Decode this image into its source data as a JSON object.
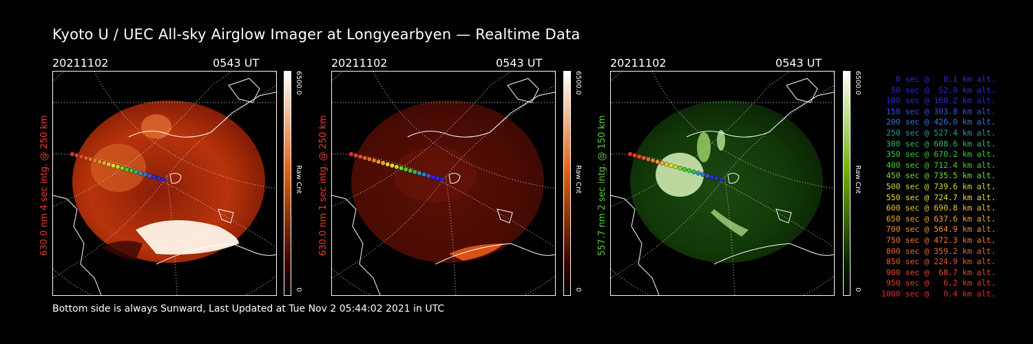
{
  "title": "Kyoto U / UEC All-sky Airglow Imager at Longyearbyen — Realtime Data",
  "footer": "Bottom side is always Sunward, Last Updated at Tue Nov  2 05:44:02 2021 in UTC",
  "panels": [
    {
      "date": "20211102",
      "time": "0543 UT",
      "side_label": "630.0 nm 4 sec intg. @ 250 km",
      "side_color": "#e8402a",
      "colorbar_max": "6500.0",
      "colorbar_unit": "Raw Cnt",
      "colorbar_min": "0",
      "colormap": "red",
      "top_color": "#ffffff",
      "mid_color": "#e06010",
      "bottom_color": "#3a0500"
    },
    {
      "date": "20211102",
      "time": "0543 UT",
      "side_label": "630.0 nm 1 sec intg. @ 250 km",
      "side_color": "#e8402a",
      "colorbar_max": "6500.0",
      "colorbar_unit": "Raw Cnt",
      "colorbar_min": "0",
      "colormap": "red",
      "top_color": "#ffffff",
      "mid_color": "#e06010",
      "bottom_color": "#3a0500"
    },
    {
      "date": "20211102",
      "time": "0543 UT",
      "side_label": "557.7 nm 2 sec intg. @ 150 km",
      "side_color": "#56d235",
      "colorbar_max": "6500.0",
      "colorbar_unit": "Raw Cnt",
      "colorbar_min": "0",
      "colormap": "green",
      "top_color": "#ffffff",
      "mid_color": "#6fb000",
      "bottom_color": "#0a2400"
    }
  ],
  "legend": [
    {
      "text": "  0 sec @   0.1 km alt.",
      "color": "#2b2bd8"
    },
    {
      "text": " 50 sec @  52.0 km alt.",
      "color": "#2b2bd8"
    },
    {
      "text": "100 sec @ 160.2 km alt.",
      "color": "#2b2bd8"
    },
    {
      "text": "150 sec @ 303.8 km alt.",
      "color": "#3a4fe0"
    },
    {
      "text": "200 sec @ 426.0 km alt.",
      "color": "#2f78d0"
    },
    {
      "text": "250 sec @ 527.4 km alt.",
      "color": "#2a9aa4"
    },
    {
      "text": "300 sec @ 608.6 km alt.",
      "color": "#2fb86e"
    },
    {
      "text": "350 sec @ 670.2 km alt.",
      "color": "#3acc3a"
    },
    {
      "text": "400 sec @ 712.4 km alt.",
      "color": "#3ed230"
    },
    {
      "text": "450 sec @ 735.5 km alt.",
      "color": "#7ad62a"
    },
    {
      "text": "500 sec @ 739.6 km alt.",
      "color": "#c8dc2a"
    },
    {
      "text": "550 sec @ 724.7 km alt.",
      "color": "#e6e22a"
    },
    {
      "text": "600 sec @ 690.8 km alt.",
      "color": "#f0c42a"
    },
    {
      "text": "650 sec @ 637.6 km alt.",
      "color": "#f0a82a"
    },
    {
      "text": "700 sec @ 564.9 km alt.",
      "color": "#ee922a"
    },
    {
      "text": "750 sec @ 472.3 km alt.",
      "color": "#ec7c2a"
    },
    {
      "text": "800 sec @ 359.2 km alt.",
      "color": "#ea6a2a"
    },
    {
      "text": "850 sec @ 224.9 km alt.",
      "color": "#e85a2a"
    },
    {
      "text": "900 sec @  68.7 km alt.",
      "color": "#e64a2a"
    },
    {
      "text": "950 sec @   6.2 km alt.",
      "color": "#e43c2a"
    },
    {
      "text": "1000 sec @   0.4 km alt.",
      "color": "#e2302a"
    }
  ]
}
